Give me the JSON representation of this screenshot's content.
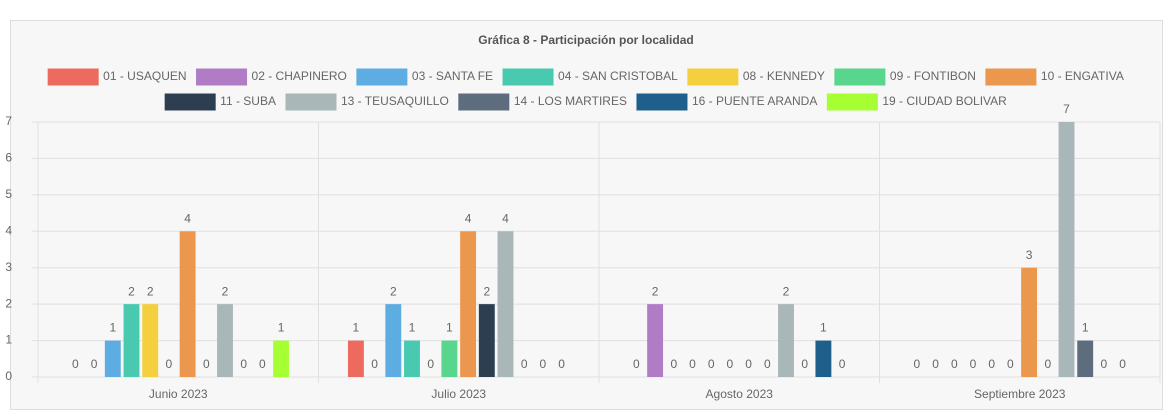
{
  "chart_data": {
    "type": "bar",
    "title": "Gráfica 8 - Participación por localidad",
    "categories": [
      "Junio 2023",
      "Julio 2023",
      "Agosto 2023",
      "Septiembre 2023"
    ],
    "series": [
      {
        "name": "01 - USAQUEN",
        "color": "#ec6b5e",
        "values": [
          0,
          1,
          0,
          0
        ]
      },
      {
        "name": "02 - CHAPINERO",
        "color": "#b07cc6",
        "values": [
          0,
          0,
          2,
          0
        ]
      },
      {
        "name": "03 - SANTA FE",
        "color": "#5dade2",
        "values": [
          1,
          2,
          0,
          0
        ]
      },
      {
        "name": "04 - SAN CRISTOBAL",
        "color": "#48c9b0",
        "values": [
          2,
          1,
          0,
          0
        ]
      },
      {
        "name": "08 - KENNEDY",
        "color": "#f4d03f",
        "values": [
          2,
          0,
          0,
          0
        ]
      },
      {
        "name": "09 - FONTIBON",
        "color": "#58d68d",
        "values": [
          0,
          1,
          0,
          0
        ]
      },
      {
        "name": "10 - ENGATIVA",
        "color": "#eb984e",
        "values": [
          4,
          4,
          0,
          3
        ]
      },
      {
        "name": "11 - SUBA",
        "color": "#2c3e50",
        "values": [
          0,
          2,
          0,
          0
        ]
      },
      {
        "name": "13 - TEUSAQUILLO",
        "color": "#aab7b8",
        "values": [
          2,
          4,
          2,
          7
        ]
      },
      {
        "name": "14 - LOS MARTIRES",
        "color": "#5d6d7e",
        "values": [
          0,
          0,
          0,
          1
        ]
      },
      {
        "name": "16 - PUENTE ARANDA",
        "color": "#1f5f8b",
        "values": [
          0,
          0,
          1,
          0
        ]
      },
      {
        "name": "19 - CIUDAD BOLIVAR",
        "color": "#a5ff33",
        "values": [
          1,
          0,
          0,
          0
        ]
      }
    ],
    "ylim": [
      0,
      7
    ],
    "yticks": [
      0,
      1,
      2,
      3,
      4,
      5,
      6,
      7
    ],
    "grid": true
  }
}
